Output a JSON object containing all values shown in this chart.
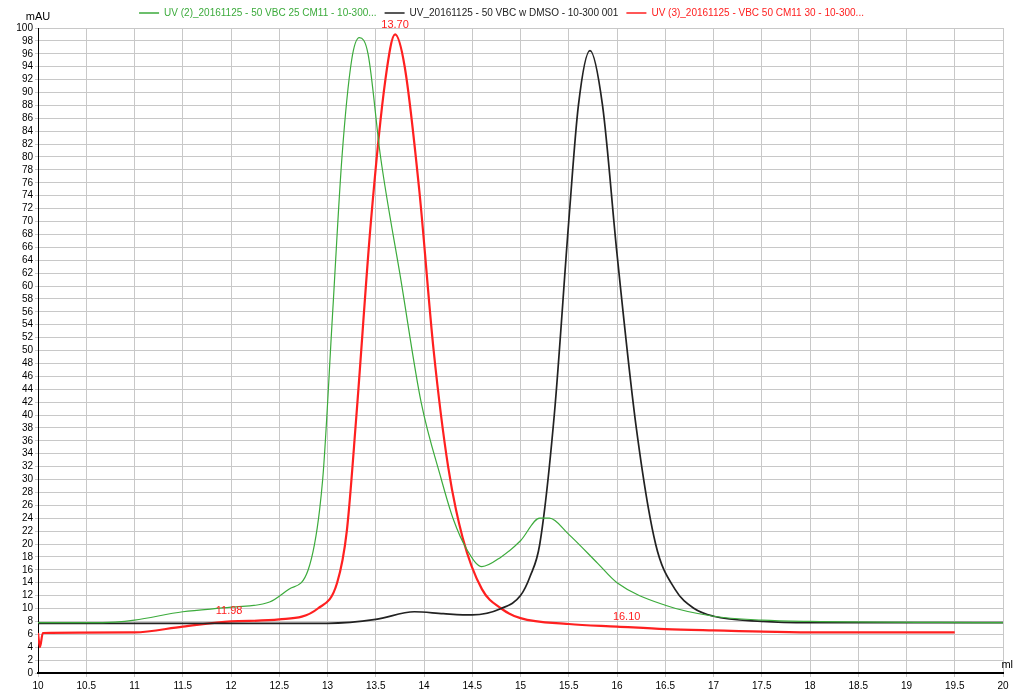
{
  "chart_data": {
    "type": "line",
    "xlabel": "ml",
    "ylabel": "mAU",
    "xlim": [
      10,
      20
    ],
    "xticks": [
      10,
      10.5,
      11,
      11.5,
      12,
      12.5,
      13,
      13.5,
      14,
      14.5,
      15,
      15.5,
      16,
      16.5,
      17,
      17.5,
      18,
      18.5,
      19,
      19.5,
      20
    ],
    "ylim": [
      0,
      100
    ],
    "yticks": [
      0,
      2,
      4,
      6,
      8,
      10,
      12,
      14,
      16,
      18,
      20,
      22,
      24,
      26,
      28,
      30,
      32,
      34,
      36,
      38,
      40,
      42,
      44,
      46,
      48,
      50,
      52,
      54,
      56,
      58,
      60,
      62,
      64,
      66,
      68,
      70,
      72,
      74,
      76,
      78,
      80,
      82,
      84,
      86,
      88,
      90,
      92,
      94,
      96,
      98,
      100
    ],
    "grid": true,
    "legend": "top",
    "marker": "none",
    "line_style": "solid",
    "series": [
      {
        "name": "UV (2)_20161125 - 50 VBC 25 CM11 - 10-300...",
        "color": "#3cab3c",
        "x": [
          10,
          10.5,
          10.8,
          11,
          11.5,
          12,
          12.4,
          12.6,
          12.8,
          12.95,
          13.05,
          13.15,
          13.25,
          13.33,
          13.42,
          13.55,
          13.76,
          13.97,
          14.18,
          14.3,
          14.45,
          14.6,
          14.8,
          15,
          15.2,
          15.3,
          15.5,
          15.8,
          16,
          16.5,
          17,
          17.5,
          18,
          20
        ],
        "values": [
          7.8,
          7.8,
          7.9,
          8.2,
          9.5,
          10.2,
          11,
          13,
          16,
          30,
          55,
          80,
          95,
          98.5,
          96,
          80,
          61,
          42,
          30,
          24,
          19,
          16.5,
          18,
          20.5,
          24,
          24,
          21.5,
          17,
          14,
          10.5,
          8.8,
          8.2,
          8,
          7.8
        ]
      },
      {
        "name": "UV_20161125 - 50 VBC w DMSO - 10-300 001",
        "color": "#222222",
        "x": [
          10,
          13,
          13.5,
          13.9,
          14.2,
          14.5,
          14.8,
          15,
          15.1,
          15.2,
          15.35,
          15.5,
          15.6,
          15.72,
          15.85,
          16,
          16.2,
          16.4,
          16.6,
          16.8,
          17,
          17.5,
          18,
          20
        ],
        "values": [
          7.7,
          7.7,
          8.3,
          9.5,
          9.2,
          9,
          10,
          12,
          15,
          20,
          40,
          70,
          88,
          96.5,
          88,
          65,
          38,
          20,
          13,
          10,
          8.8,
          8,
          7.8,
          7.8
        ]
      },
      {
        "name": "UV (3)_20161125 - VBC 50 CM11 30 - 10-300...",
        "color": "#ff2020",
        "x": [
          10,
          10.02,
          10.05,
          11,
          11.5,
          12,
          12.5,
          12.9,
          13.1,
          13.2,
          13.3,
          13.45,
          13.6,
          13.7,
          13.8,
          13.95,
          14.1,
          14.25,
          14.4,
          14.6,
          14.8,
          15,
          15.5,
          16,
          16.5,
          17,
          18,
          19.5
        ],
        "values": [
          6.2,
          4,
          6.2,
          6.3,
          7.2,
          8,
          8.3,
          10,
          14,
          22,
          40,
          70,
          92,
          99,
          94,
          75,
          50,
          32,
          21,
          13,
          10,
          8.5,
          7.6,
          7.2,
          6.8,
          6.6,
          6.3,
          6.3
        ]
      }
    ],
    "annotations": [
      {
        "text": "13.70",
        "x": 13.7,
        "y": 99
      },
      {
        "text": "11.98",
        "x": 11.98,
        "y": 8.1
      },
      {
        "text": "16.10",
        "x": 16.1,
        "y": 7.2
      }
    ]
  }
}
